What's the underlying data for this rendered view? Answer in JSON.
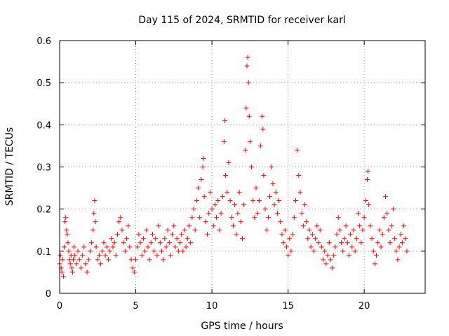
{
  "chart_data": {
    "type": "scatter",
    "title": "Day 115 of 2024, SRMTID for receiver karl",
    "xlabel": "GPS time / hours",
    "ylabel": "SRMTID / TECUs",
    "xlim": [
      0,
      24
    ],
    "ylim": [
      0,
      0.6
    ],
    "xticks": [
      0,
      5,
      10,
      15,
      20
    ],
    "xtick_labels": [
      "0",
      "5",
      "10",
      "15",
      "20"
    ],
    "yticks": [
      0,
      0.1,
      0.2,
      0.3,
      0.4,
      0.5,
      0.6
    ],
    "ytick_labels": [
      "0",
      "0.1",
      "0.2",
      "0.3",
      "0.4",
      "0.5",
      "0.6"
    ],
    "grid": true,
    "marker": "+",
    "color": "#ff0000",
    "series": [
      {
        "name": "SRMTID",
        "points": [
          [
            0.0,
            0.07
          ],
          [
            0.05,
            0.09
          ],
          [
            0.1,
            0.06
          ],
          [
            0.15,
            0.05
          ],
          [
            0.2,
            0.08
          ],
          [
            0.25,
            0.04
          ],
          [
            0.3,
            0.11
          ],
          [
            0.35,
            0.17
          ],
          [
            0.4,
            0.18
          ],
          [
            0.45,
            0.15
          ],
          [
            0.5,
            0.14
          ],
          [
            0.55,
            0.12
          ],
          [
            0.6,
            0.1
          ],
          [
            0.65,
            0.08
          ],
          [
            0.7,
            0.07
          ],
          [
            0.75,
            0.09
          ],
          [
            0.8,
            0.06
          ],
          [
            0.85,
            0.05
          ],
          [
            0.9,
            0.08
          ],
          [
            0.95,
            0.11
          ],
          [
            1.0,
            0.09
          ],
          [
            1.1,
            0.07
          ],
          [
            1.2,
            0.1
          ],
          [
            1.3,
            0.08
          ],
          [
            1.4,
            0.06
          ],
          [
            1.5,
            0.09
          ],
          [
            1.6,
            0.11
          ],
          [
            1.7,
            0.07
          ],
          [
            1.8,
            0.05
          ],
          [
            1.9,
            0.08
          ],
          [
            2.0,
            0.1
          ],
          [
            2.1,
            0.12
          ],
          [
            2.2,
            0.15
          ],
          [
            2.25,
            0.19
          ],
          [
            2.3,
            0.22
          ],
          [
            2.35,
            0.17
          ],
          [
            2.4,
            0.11
          ],
          [
            2.5,
            0.08
          ],
          [
            2.6,
            0.09
          ],
          [
            2.7,
            0.07
          ],
          [
            2.8,
            0.1
          ],
          [
            2.9,
            0.12
          ],
          [
            3.0,
            0.09
          ],
          [
            3.1,
            0.11
          ],
          [
            3.2,
            0.08
          ],
          [
            3.3,
            0.1
          ],
          [
            3.4,
            0.13
          ],
          [
            3.5,
            0.11
          ],
          [
            3.6,
            0.12
          ],
          [
            3.7,
            0.09
          ],
          [
            3.8,
            0.14
          ],
          [
            3.9,
            0.17
          ],
          [
            4.0,
            0.18
          ],
          [
            4.1,
            0.15
          ],
          [
            4.2,
            0.12
          ],
          [
            4.3,
            0.1
          ],
          [
            4.4,
            0.13
          ],
          [
            4.5,
            0.16
          ],
          [
            4.6,
            0.11
          ],
          [
            4.7,
            0.08
          ],
          [
            4.8,
            0.06
          ],
          [
            4.9,
            0.05
          ],
          [
            5.0,
            0.08
          ],
          [
            5.1,
            0.11
          ],
          [
            5.2,
            0.14
          ],
          [
            5.3,
            0.12
          ],
          [
            5.4,
            0.09
          ],
          [
            5.5,
            0.13
          ],
          [
            5.6,
            0.1
          ],
          [
            5.7,
            0.15
          ],
          [
            5.8,
            0.11
          ],
          [
            5.9,
            0.08
          ],
          [
            6.0,
            0.12
          ],
          [
            6.1,
            0.14
          ],
          [
            6.2,
            0.1
          ],
          [
            6.3,
            0.13
          ],
          [
            6.4,
            0.09
          ],
          [
            6.5,
            0.16
          ],
          [
            6.6,
            0.12
          ],
          [
            6.7,
            0.1
          ],
          [
            6.8,
            0.08
          ],
          [
            6.9,
            0.13
          ],
          [
            7.0,
            0.11
          ],
          [
            7.1,
            0.15
          ],
          [
            7.2,
            0.12
          ],
          [
            7.3,
            0.09
          ],
          [
            7.4,
            0.14
          ],
          [
            7.5,
            0.16
          ],
          [
            7.6,
            0.11
          ],
          [
            7.7,
            0.13
          ],
          [
            7.8,
            0.1
          ],
          [
            7.9,
            0.12
          ],
          [
            8.0,
            0.14
          ],
          [
            8.1,
            0.1
          ],
          [
            8.2,
            0.15
          ],
          [
            8.3,
            0.11
          ],
          [
            8.4,
            0.13
          ],
          [
            8.5,
            0.16
          ],
          [
            8.6,
            0.12
          ],
          [
            8.7,
            0.18
          ],
          [
            8.8,
            0.2
          ],
          [
            8.9,
            0.15
          ],
          [
            9.0,
            0.22
          ],
          [
            9.1,
            0.25
          ],
          [
            9.2,
            0.18
          ],
          [
            9.3,
            0.27
          ],
          [
            9.4,
            0.3
          ],
          [
            9.45,
            0.32
          ],
          [
            9.5,
            0.23
          ],
          [
            9.6,
            0.17
          ],
          [
            9.7,
            0.14
          ],
          [
            9.8,
            0.19
          ],
          [
            9.9,
            0.24
          ],
          [
            10.0,
            0.2
          ],
          [
            10.1,
            0.16
          ],
          [
            10.2,
            0.21
          ],
          [
            10.3,
            0.18
          ],
          [
            10.4,
            0.22
          ],
          [
            10.5,
            0.15
          ],
          [
            10.6,
            0.19
          ],
          [
            10.7,
            0.23
          ],
          [
            10.8,
            0.36
          ],
          [
            10.85,
            0.41
          ],
          [
            10.9,
            0.28
          ],
          [
            11.0,
            0.24
          ],
          [
            11.1,
            0.31
          ],
          [
            11.2,
            0.22
          ],
          [
            11.3,
            0.18
          ],
          [
            11.4,
            0.16
          ],
          [
            11.5,
            0.21
          ],
          [
            11.6,
            0.14
          ],
          [
            11.7,
            0.19
          ],
          [
            11.8,
            0.24
          ],
          [
            11.9,
            0.17
          ],
          [
            12.0,
            0.13
          ],
          [
            12.1,
            0.21
          ],
          [
            12.2,
            0.34
          ],
          [
            12.25,
            0.44
          ],
          [
            12.3,
            0.54
          ],
          [
            12.35,
            0.56
          ],
          [
            12.4,
            0.5
          ],
          [
            12.45,
            0.42
          ],
          [
            12.5,
            0.36
          ],
          [
            12.6,
            0.3
          ],
          [
            12.7,
            0.22
          ],
          [
            12.8,
            0.18
          ],
          [
            12.9,
            0.25
          ],
          [
            13.0,
            0.19
          ],
          [
            13.1,
            0.22
          ],
          [
            13.2,
            0.35
          ],
          [
            13.3,
            0.42
          ],
          [
            13.35,
            0.39
          ],
          [
            13.4,
            0.28
          ],
          [
            13.5,
            0.2
          ],
          [
            13.6,
            0.15
          ],
          [
            13.7,
            0.18
          ],
          [
            13.8,
            0.23
          ],
          [
            13.9,
            0.3
          ],
          [
            14.0,
            0.26
          ],
          [
            14.1,
            0.21
          ],
          [
            14.2,
            0.24
          ],
          [
            14.3,
            0.19
          ],
          [
            14.4,
            0.22
          ],
          [
            14.5,
            0.17
          ],
          [
            14.6,
            0.14
          ],
          [
            14.7,
            0.12
          ],
          [
            14.8,
            0.15
          ],
          [
            14.9,
            0.11
          ],
          [
            15.0,
            0.09
          ],
          [
            15.1,
            0.13
          ],
          [
            15.2,
            0.1
          ],
          [
            15.3,
            0.14
          ],
          [
            15.4,
            0.18
          ],
          [
            15.5,
            0.22
          ],
          [
            15.6,
            0.34
          ],
          [
            15.7,
            0.28
          ],
          [
            15.8,
            0.24
          ],
          [
            15.9,
            0.19
          ],
          [
            16.0,
            0.16
          ],
          [
            16.1,
            0.21
          ],
          [
            16.2,
            0.17
          ],
          [
            16.3,
            0.13
          ],
          [
            16.4,
            0.15
          ],
          [
            16.5,
            0.11
          ],
          [
            16.6,
            0.14
          ],
          [
            16.7,
            0.1
          ],
          [
            16.8,
            0.13
          ],
          [
            16.9,
            0.16
          ],
          [
            17.0,
            0.12
          ],
          [
            17.1,
            0.15
          ],
          [
            17.2,
            0.11
          ],
          [
            17.3,
            0.08
          ],
          [
            17.4,
            0.1
          ],
          [
            17.5,
            0.07
          ],
          [
            17.6,
            0.09
          ],
          [
            17.7,
            0.12
          ],
          [
            17.8,
            0.08
          ],
          [
            17.9,
            0.06
          ],
          [
            18.0,
            0.09
          ],
          [
            18.1,
            0.11
          ],
          [
            18.2,
            0.14
          ],
          [
            18.3,
            0.18
          ],
          [
            18.4,
            0.15
          ],
          [
            18.5,
            0.12
          ],
          [
            18.6,
            0.1
          ],
          [
            18.7,
            0.13
          ],
          [
            18.8,
            0.16
          ],
          [
            18.9,
            0.12
          ],
          [
            19.0,
            0.09
          ],
          [
            19.1,
            0.14
          ],
          [
            19.2,
            0.11
          ],
          [
            19.3,
            0.15
          ],
          [
            19.4,
            0.1
          ],
          [
            19.5,
            0.13
          ],
          [
            19.6,
            0.19
          ],
          [
            19.7,
            0.16
          ],
          [
            19.8,
            0.12
          ],
          [
            19.9,
            0.15
          ],
          [
            20.0,
            0.18
          ],
          [
            20.1,
            0.22
          ],
          [
            20.2,
            0.27
          ],
          [
            20.25,
            0.29
          ],
          [
            20.3,
            0.21
          ],
          [
            20.4,
            0.16
          ],
          [
            20.5,
            0.13
          ],
          [
            20.6,
            0.1
          ],
          [
            20.7,
            0.07
          ],
          [
            20.8,
            0.09
          ],
          [
            20.9,
            0.12
          ],
          [
            21.0,
            0.15
          ],
          [
            21.1,
            0.11
          ],
          [
            21.2,
            0.14
          ],
          [
            21.3,
            0.18
          ],
          [
            21.4,
            0.23
          ],
          [
            21.5,
            0.19
          ],
          [
            21.6,
            0.15
          ],
          [
            21.7,
            0.12
          ],
          [
            21.8,
            0.16
          ],
          [
            21.9,
            0.2
          ],
          [
            22.0,
            0.13
          ],
          [
            22.1,
            0.1
          ],
          [
            22.2,
            0.08
          ],
          [
            22.3,
            0.11
          ],
          [
            22.4,
            0.14
          ],
          [
            22.5,
            0.12
          ],
          [
            22.6,
            0.16
          ],
          [
            22.7,
            0.13
          ],
          [
            22.8,
            0.1
          ]
        ]
      }
    ]
  }
}
